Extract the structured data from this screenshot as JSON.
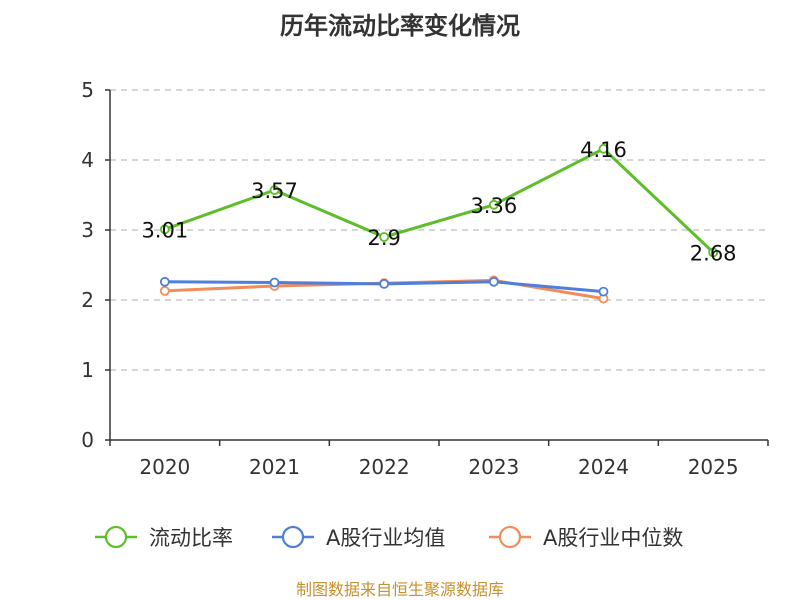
{
  "chart_data": {
    "type": "line",
    "title": "历年流动比率变化情况",
    "categories": [
      "2020",
      "2021",
      "2022",
      "2023",
      "2024",
      "2025"
    ],
    "ylim": [
      0,
      5
    ],
    "yticks": [
      "0",
      "1",
      "2",
      "3",
      "4",
      "5"
    ],
    "grid": true,
    "legend_position": "bottom",
    "series": [
      {
        "name": "流动比率",
        "color": "#5dbe2a",
        "values": [
          3.01,
          3.57,
          2.9,
          3.36,
          4.16,
          2.68
        ],
        "labels": [
          "3.01",
          "3.57",
          "2.9",
          "3.36",
          "4.16",
          "2.68"
        ]
      },
      {
        "name": "A股行业均值",
        "color": "#4f7fd9",
        "values": [
          2.26,
          2.25,
          2.23,
          2.26,
          2.12,
          null
        ]
      },
      {
        "name": "A股行业中位数",
        "color": "#f28c5a",
        "values": [
          2.13,
          2.2,
          2.24,
          2.28,
          2.02,
          null
        ]
      }
    ],
    "source": "制图数据来自恒生聚源数据库"
  }
}
